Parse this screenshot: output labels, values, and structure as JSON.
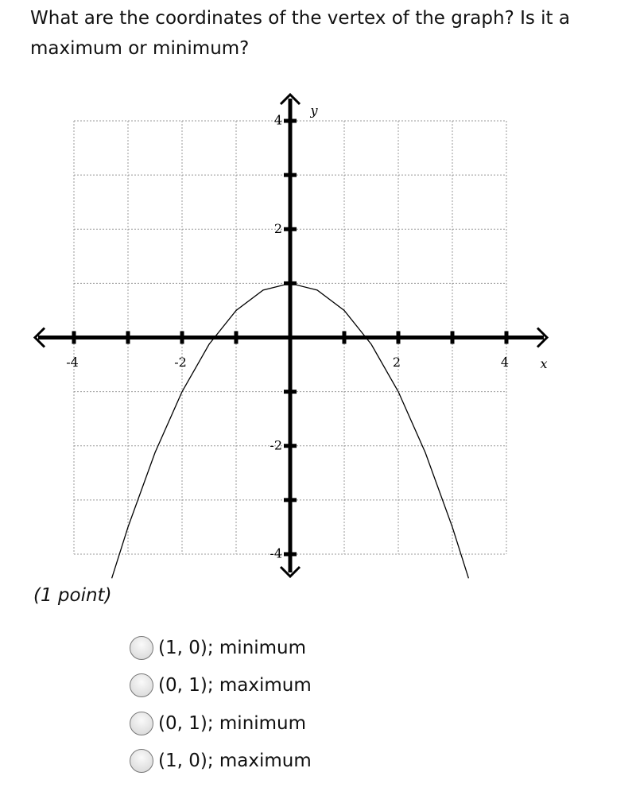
{
  "question": "What are the coordinates of the vertex of the graph? Is it a maximum or minimum?",
  "chart_data": {
    "type": "line",
    "x": [
      -3.3,
      -3,
      -2.5,
      -2,
      -1.5,
      -1,
      -0.5,
      0,
      0.5,
      1,
      1.5,
      2,
      2.5,
      3,
      3.3
    ],
    "values": [
      -4.445,
      -3.5,
      -2.125,
      -1,
      -0.125,
      0.5,
      0.875,
      1,
      0.875,
      0.5,
      -0.125,
      -1,
      -2.125,
      -3.5,
      -4.445
    ],
    "color": "#000000",
    "xlabel": "x",
    "ylabel": "y",
    "xlim": [
      -4,
      4
    ],
    "ylim": [
      -4,
      4
    ],
    "xticks": [
      -4,
      -2,
      2,
      4
    ],
    "yticks": [
      -4,
      -2,
      2,
      4
    ],
    "xminor": [
      -3,
      -1,
      1,
      3
    ],
    "yminor": [
      -3,
      -1,
      1,
      3
    ],
    "grid": true
  },
  "points": "(1 point)",
  "options": [
    "(1, 0); minimum",
    "(0, 1); maximum",
    "(0, 1); minimum",
    "(1, 0); maximum"
  ]
}
